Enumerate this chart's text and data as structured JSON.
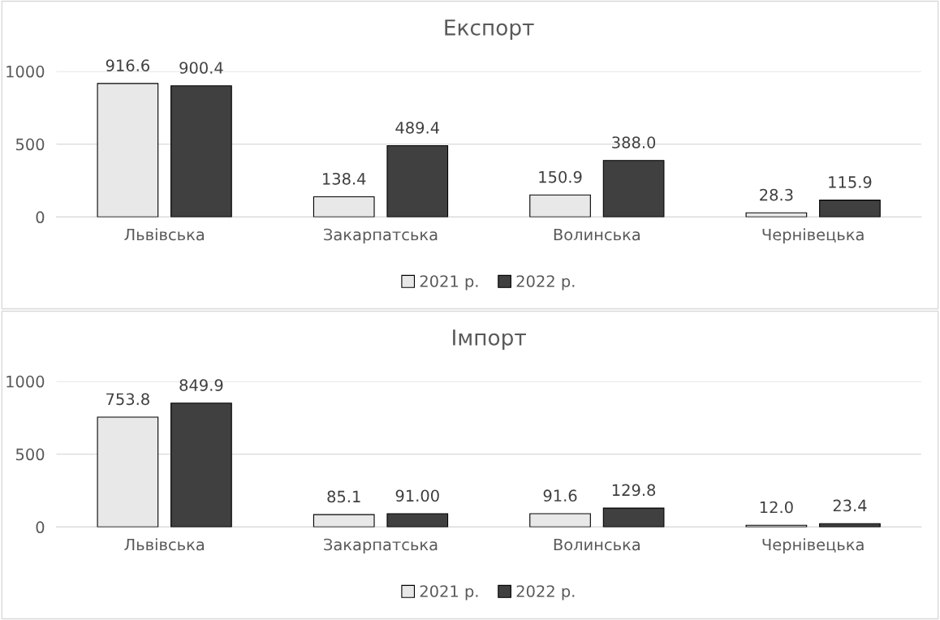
{
  "chart_data": [
    {
      "type": "bar",
      "title": "Експорт",
      "categories": [
        "Львівська",
        "Закарпатська",
        "Волинська",
        "Чернівецька"
      ],
      "series": [
        {
          "name": "2021 р.",
          "color": "#e8e8e8",
          "values": [
            916.6,
            138.4,
            150.9,
            28.3
          ],
          "value_labels": [
            "916.6",
            "138.4",
            "150.9",
            "28.3"
          ]
        },
        {
          "name": "2022 р.",
          "color": "#404040",
          "values": [
            900.4,
            489.4,
            388.0,
            115.9
          ],
          "value_labels": [
            "900.4",
            "489.4",
            "388.0",
            "115.9"
          ]
        }
      ],
      "ylim": [
        0,
        1000
      ],
      "yticks": [
        0,
        500,
        1000
      ],
      "grid": "y",
      "legend": "bottom"
    },
    {
      "type": "bar",
      "title": "Імпорт",
      "categories": [
        "Львівська",
        "Закарпатська",
        "Волинська",
        "Чернівецька"
      ],
      "series": [
        {
          "name": "2021 р.",
          "color": "#e8e8e8",
          "values": [
            753.8,
            85.1,
            91.6,
            12.0
          ],
          "value_labels": [
            "753.8",
            "85.1",
            "91.6",
            "12.0"
          ]
        },
        {
          "name": "2022 р.",
          "color": "#404040",
          "values": [
            849.9,
            91.0,
            129.8,
            23.4
          ],
          "value_labels": [
            "849.9",
            "91.00",
            "129.8",
            "23.4"
          ]
        }
      ],
      "ylim": [
        0,
        1000
      ],
      "yticks": [
        0,
        500,
        1000
      ],
      "grid": "y",
      "legend": "bottom"
    }
  ]
}
